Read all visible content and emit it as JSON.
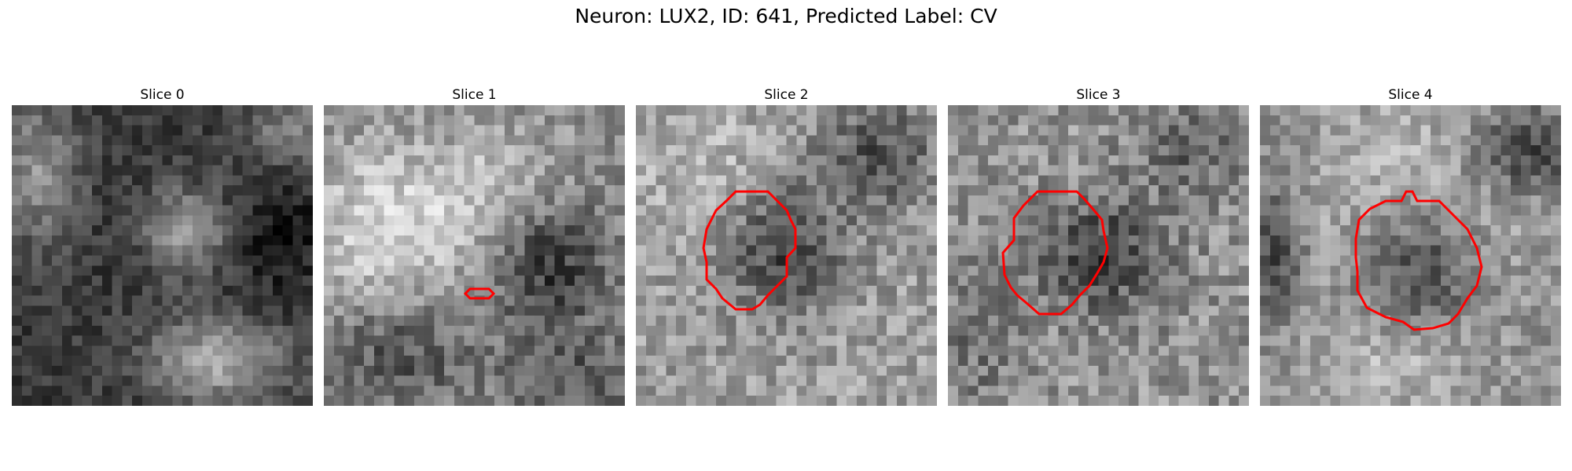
{
  "figure": {
    "title": "Neuron: LUX2, ID: 641, Predicted Label: CV"
  },
  "slices": [
    {
      "label": "Slice 0",
      "has_contour": false,
      "contour_color": "#ff0000"
    },
    {
      "label": "Slice 1",
      "has_contour": true,
      "contour_color": "#ff0000"
    },
    {
      "label": "Slice 2",
      "has_contour": true,
      "contour_color": "#ff0000"
    },
    {
      "label": "Slice 3",
      "has_contour": true,
      "contour_color": "#ff0000"
    },
    {
      "label": "Slice 4",
      "has_contour": true,
      "contour_color": "#ff0000"
    }
  ],
  "colormap": "gray"
}
